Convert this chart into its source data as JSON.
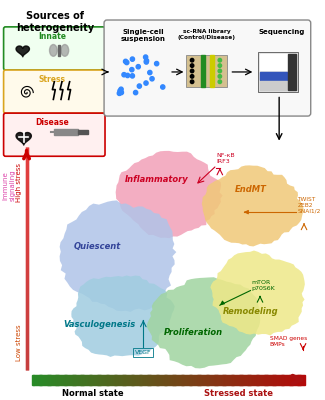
{
  "bg_color": "#ffffff",
  "title": "Sources of\nheterogeneity",
  "box_innate_color": "#228B22",
  "box_stress_color": "#DAA520",
  "box_disease_color": "#CC0000",
  "blob_colors": {
    "inflammatory": "#F2A0B8",
    "quiescent": "#B0C4E8",
    "vasculogenesis": "#A0CCE0",
    "proliferation": "#A0D4A0",
    "remodeling": "#EEE888",
    "endmt": "#F0C878"
  },
  "labels": {
    "inflammatory": "Inflammatory",
    "quiescent": "Quiescent",
    "vasculogenesis": "Vasculogenesis",
    "proliferation": "Proliferation",
    "remodeling": "Remodeling",
    "endmt": "EndMT"
  },
  "axis_x_left": "Normal state",
  "axis_x_right": "Stressed state",
  "axis_y_high": "High stress",
  "axis_y_low": "Low stress",
  "immune_label": "Immune\nsignaling",
  "workflow_step1": "Single-cell\nsuspension",
  "workflow_step2": "sc-RNA library\n(Control/Disease)",
  "workflow_step3": "Sequencing",
  "gene_nfkb": "NF-κB\nIRF3",
  "gene_twist": "TWIST\nZEB2\nSNAI1/2",
  "gene_mtor": "mTOR\np70S6K",
  "gene_smad": "SMAD genes\nBMPs",
  "gene_vegf": "VEGF"
}
